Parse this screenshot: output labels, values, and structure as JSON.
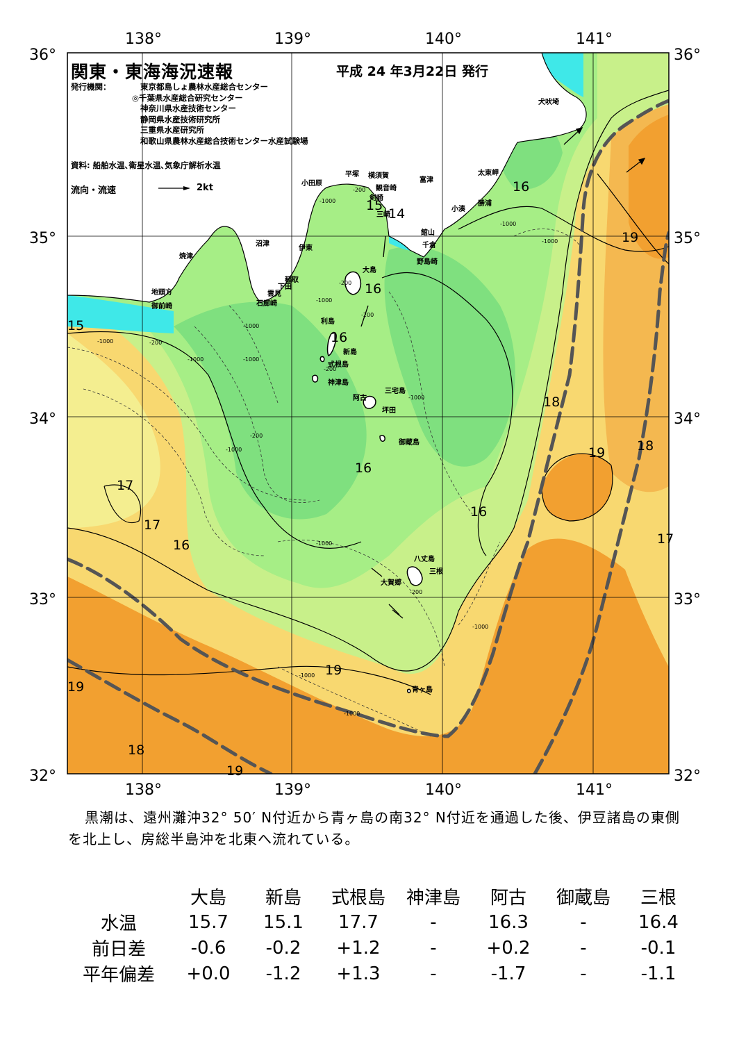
{
  "map": {
    "title": "関東・東海海況速報",
    "issue_date": "平成 24 年3月22日 発行",
    "agency_label": "発行機関：",
    "agencies": [
      "東京都島しょ農林水産総合センター",
      "◎千葉県水産総合研究センター",
      "神奈川県水産技術センター",
      "静岡県水産技術研究所",
      "三重県水産研究所",
      "和歌山県農林水産総合技術センター水産試験場"
    ],
    "source": "資料: 船舶水温､衛星水温､気象庁解析水温",
    "flow_legend_label": "流向・流速",
    "flow_legend_unit": "2kt",
    "lon_ticks": [
      "138°",
      "139°",
      "140°",
      "141°"
    ],
    "lat_ticks": [
      "36°",
      "35°",
      "34°",
      "33°",
      "32°"
    ],
    "colors": {
      "cold_cyan": "#3fe8e8",
      "green_dark": "#7fe07f",
      "green_mid": "#a6ee86",
      "green_light": "#c8f08a",
      "yellow": "#f4ee90",
      "yellow_orange": "#f8d870",
      "orange_light": "#f4b850",
      "orange": "#f2a030",
      "land": "#ffffff",
      "kuroshio_axis": "#555555"
    },
    "place_names": {
      "inubozaki": "犬吠埼",
      "taitomisaki": "太東岬",
      "katsuura": "勝浦",
      "kominato": "小湊",
      "futtsu": "富津",
      "kannonzaki": "観音崎",
      "yokosuka": "横須賀",
      "hiratsuka": "平塚",
      "odawara": "小田原",
      "jogasaki": "剣崎",
      "misaki": "三崎",
      "tateyama": "館山",
      "chikura": "千倉",
      "nojimazaki": "野島崎",
      "numazu": "沼津",
      "ito": "伊東",
      "yaizu": "焼津",
      "inatori": "稲取",
      "shimoda": "下田",
      "kumomi": "雲見",
      "irozaki": "石廊崎",
      "jitokata": "地頭方",
      "omaezaki": "御前崎",
      "oshima": "大島",
      "toshima": "利島",
      "niijima": "新島",
      "shikinejima": "式根島",
      "kozushima": "神津島",
      "miyakejima": "三宅島",
      "ako": "阿古",
      "tsubota": "坪田",
      "mikurajima": "御蔵島",
      "hachijojima": "八丈島",
      "mitsune": "三根",
      "okago": "大賀郷",
      "aogashima": "青ヶ島"
    },
    "isotherm_labels": [
      "15",
      "14",
      "15",
      "16",
      "16",
      "16",
      "16",
      "16",
      "16",
      "16",
      "17",
      "17",
      "18",
      "18",
      "18",
      "19",
      "19",
      "19",
      "19",
      "19",
      "17"
    ],
    "depth_labels": [
      "-200",
      "-1000"
    ]
  },
  "summary": {
    "text": "黒潮は、遠州灘沖32° 50′ N付近から青ヶ島の南32° N付近を通過した後、伊豆諸島の東側を北上し、房総半島沖を北東へ流れている。"
  },
  "stats": {
    "columns": [
      "大島",
      "新島",
      "式根島",
      "神津島",
      "阿古",
      "御蔵島",
      "三根"
    ],
    "rows": [
      {
        "label": "水温",
        "values": [
          "15.7",
          "15.1",
          "17.7",
          "-",
          "16.3",
          "-",
          "16.4"
        ]
      },
      {
        "label": "前日差",
        "values": [
          "-0.6",
          "-0.2",
          "+1.2",
          "-",
          "+0.2",
          "-",
          "-0.1"
        ]
      },
      {
        "label": "平年偏差",
        "values": [
          "+0.0",
          "-1.2",
          "+1.3",
          "-",
          "-1.7",
          "-",
          "-1.1"
        ]
      }
    ]
  }
}
